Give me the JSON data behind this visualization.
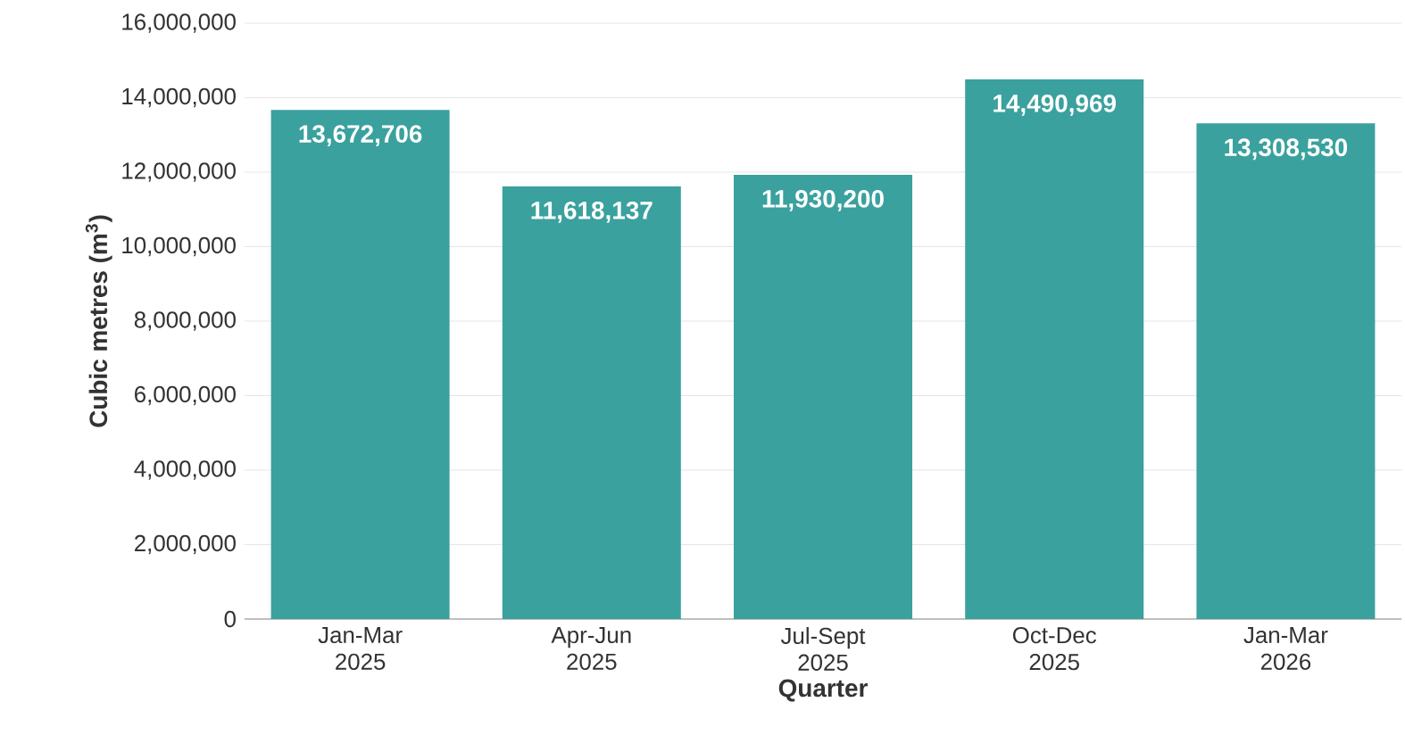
{
  "chart_data": {
    "type": "bar",
    "xlabel": "Quarter",
    "ylabel": "Cubic metres (m$^{3}$)",
    "categories": [
      "Jan-Mar 2025",
      "Apr-Jun 2025",
      "Jul-Sept 2025",
      "Oct-Dec 2025",
      "Jan-Mar 2026"
    ],
    "values": [
      13672706,
      11618137,
      11930200,
      14490969,
      13308530
    ],
    "value_labels": [
      "13,672,706",
      "11,618,137",
      "11,930,200",
      "14,490,969",
      "13,308,530"
    ],
    "color": "#3aa19e",
    "ylim": [
      0,
      16000000
    ],
    "yticks": [
      0,
      {
        "value": 2000000,
        "label": "2,000,000"
      },
      {
        "value": 4000000,
        "label": "4,000,000"
      },
      {
        "value": 6000000,
        "label": "6,000,000"
      },
      {
        "value": 8000000,
        "label": "8,000,000"
      },
      {
        "value": 10000000,
        "label": "10,000,000"
      },
      {
        "value": 12000000,
        "label": "12,000,000"
      },
      {
        "value": 14000000,
        "label": "14,000,000"
      },
      {
        "value": 16000000,
        "label": "16,000,000"
      }
    ],
    "grid": "y"
  }
}
